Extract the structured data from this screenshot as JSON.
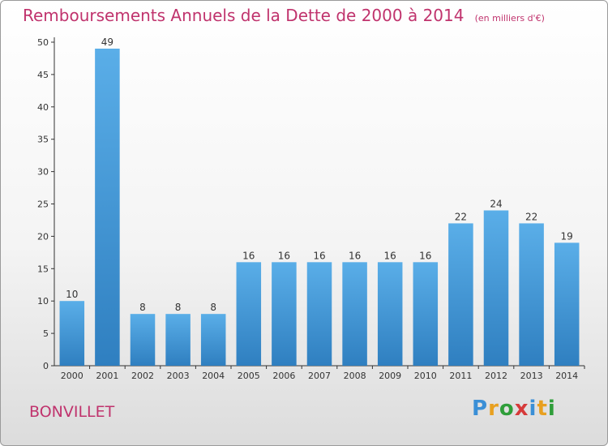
{
  "chart_data": {
    "type": "bar",
    "title": "Remboursements Annuels de la Dette de 2000 à 2014",
    "unit": "(en milliers d'€)",
    "categories": [
      "2000",
      "2001",
      "2002",
      "2003",
      "2004",
      "2005",
      "2006",
      "2007",
      "2008",
      "2009",
      "2010",
      "2011",
      "2012",
      "2013",
      "2014"
    ],
    "values": [
      10,
      49,
      8,
      8,
      8,
      16,
      16,
      16,
      16,
      16,
      16,
      22,
      24,
      22,
      19
    ],
    "ylim": [
      0,
      50
    ],
    "yticks": [
      0,
      5,
      10,
      15,
      20,
      25,
      30,
      35,
      40,
      45,
      50
    ],
    "grid": false,
    "bar_color_top": "#5aaee8",
    "bar_color_bottom": "#2f7fc0"
  },
  "commune": "BONVILLET",
  "logo": {
    "letters": [
      "P",
      "r",
      "o",
      "x",
      "i",
      "t",
      "i"
    ],
    "colors": [
      "#3a8fd6",
      "#e8a020",
      "#2f9e3a",
      "#d63a3a",
      "#3a8fd6",
      "#e8a020",
      "#2f9e3a"
    ]
  },
  "colors": {
    "title": "#c0336d",
    "axis": "#333333"
  }
}
